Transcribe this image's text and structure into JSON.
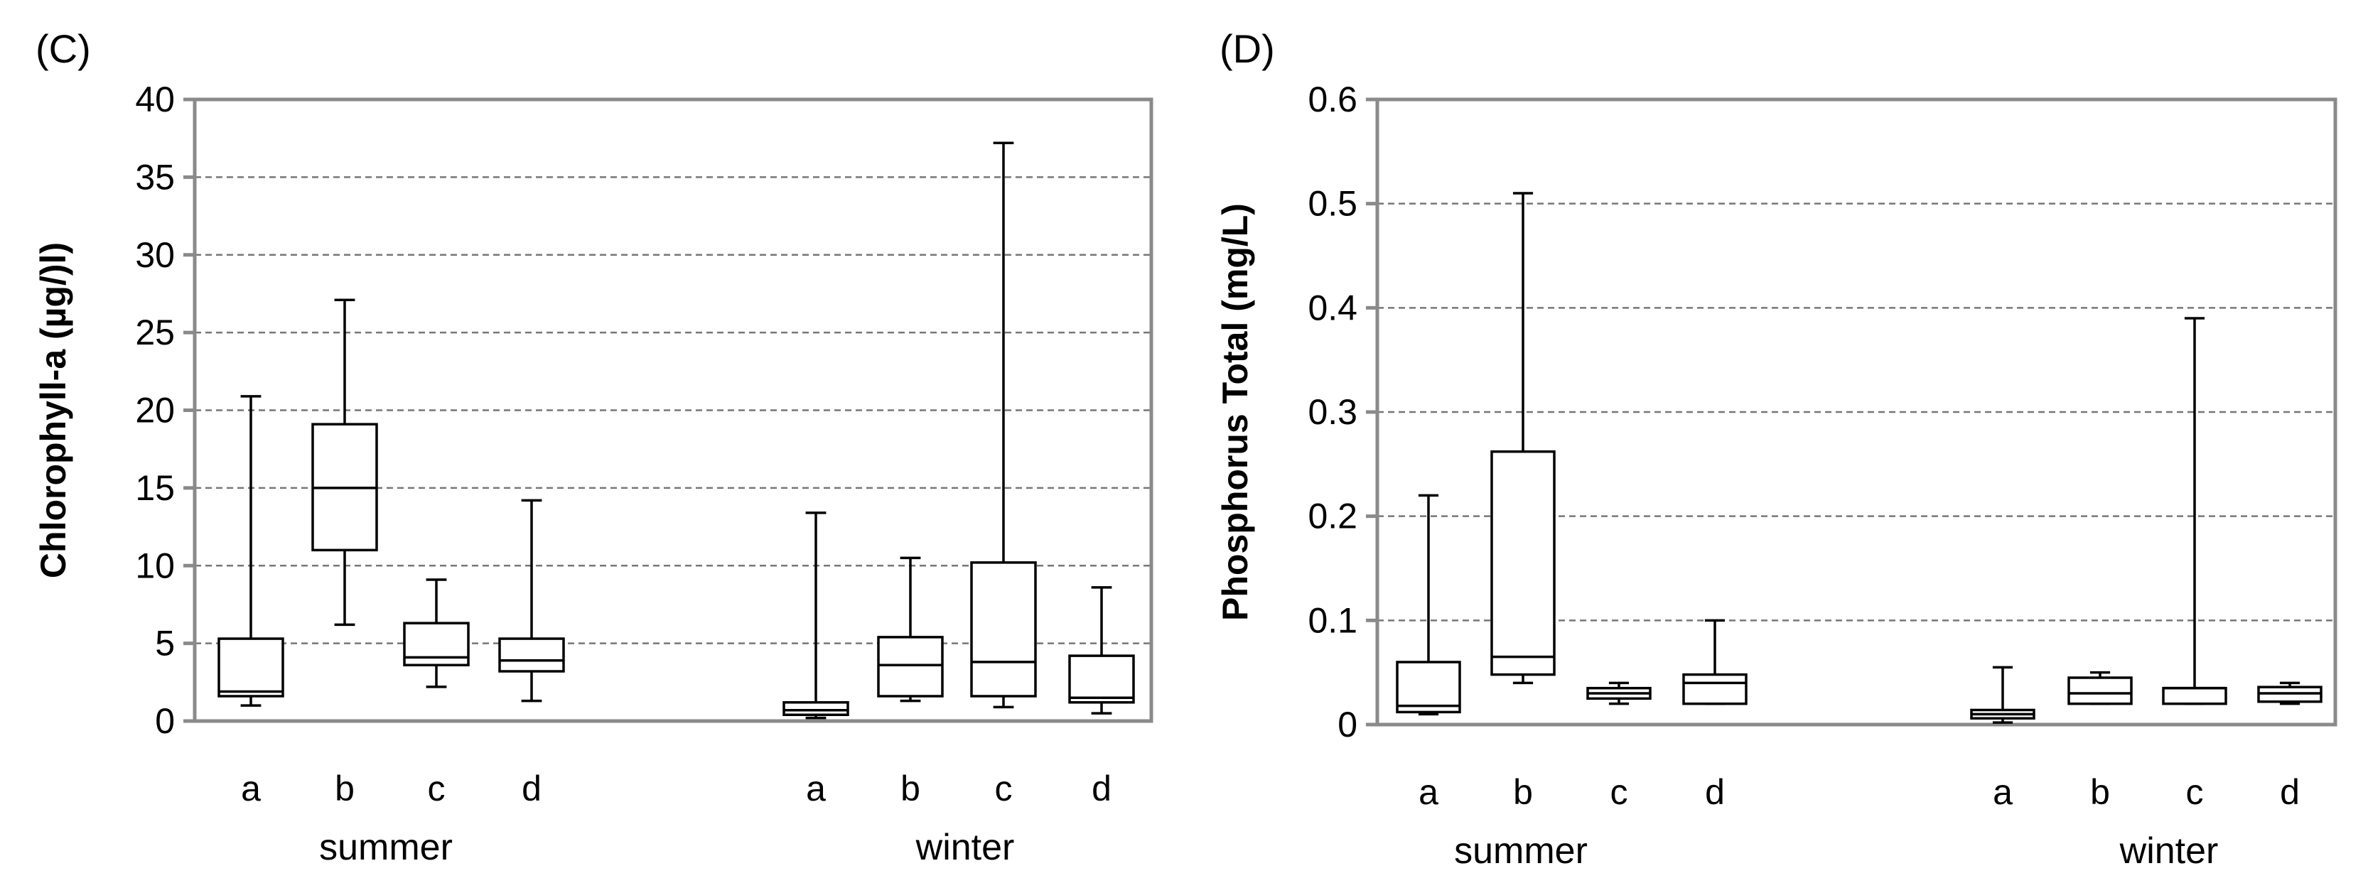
{
  "chart_data": [
    {
      "type": "box",
      "panel_label": "(C)",
      "ylabel": "Chlorophyll-a (µg/)l)",
      "ylim": [
        0,
        40
      ],
      "yticks": [
        "0",
        "5",
        "10",
        "15",
        "20",
        "25",
        "30",
        "35",
        "40"
      ],
      "grid": true,
      "groups": [
        {
          "name": "summer",
          "boxes": [
            {
              "label": "a",
              "min": 1.0,
              "q1": 1.6,
              "median": 1.9,
              "q3": 5.3,
              "max": 20.9
            },
            {
              "label": "b",
              "min": 6.2,
              "q1": 11.0,
              "median": 15.0,
              "q3": 19.1,
              "max": 27.1
            },
            {
              "label": "c",
              "min": 2.2,
              "q1": 3.6,
              "median": 4.1,
              "q3": 6.3,
              "max": 9.1
            },
            {
              "label": "d",
              "min": 1.3,
              "q1": 3.2,
              "median": 3.9,
              "q3": 5.3,
              "max": 14.2
            }
          ]
        },
        {
          "name": "winter",
          "boxes": [
            {
              "label": "a",
              "min": 0.2,
              "q1": 0.4,
              "median": 0.7,
              "q3": 1.2,
              "max": 13.4
            },
            {
              "label": "b",
              "min": 1.3,
              "q1": 1.6,
              "median": 3.6,
              "q3": 5.4,
              "max": 10.5
            },
            {
              "label": "c",
              "min": 0.9,
              "q1": 1.6,
              "median": 3.8,
              "q3": 10.2,
              "max": 37.2
            },
            {
              "label": "d",
              "min": 0.5,
              "q1": 1.2,
              "median": 1.5,
              "q3": 4.2,
              "max": 8.6
            }
          ]
        }
      ]
    },
    {
      "type": "box",
      "panel_label": "(D)",
      "ylabel": "Phosphorus Total (mg/L)",
      "ylim": [
        0,
        0.6
      ],
      "yticks": [
        "0",
        "0.1",
        "0.2",
        "0.3",
        "0.4",
        "0.5",
        "0.6"
      ],
      "grid": true,
      "groups": [
        {
          "name": "summer",
          "boxes": [
            {
              "label": "a",
              "min": 0.01,
              "q1": 0.012,
              "median": 0.018,
              "q3": 0.06,
              "max": 0.22
            },
            {
              "label": "b",
              "min": 0.04,
              "q1": 0.048,
              "median": 0.065,
              "q3": 0.262,
              "max": 0.51
            },
            {
              "label": "c",
              "min": 0.02,
              "q1": 0.025,
              "median": 0.03,
              "q3": 0.035,
              "max": 0.04
            },
            {
              "label": "d",
              "min": 0.02,
              "q1": 0.02,
              "median": 0.04,
              "q3": 0.048,
              "max": 0.1
            }
          ]
        },
        {
          "name": "winter",
          "boxes": [
            {
              "label": "a",
              "min": 0.002,
              "q1": 0.006,
              "median": 0.01,
              "q3": 0.014,
              "max": 0.055
            },
            {
              "label": "b",
              "min": 0.02,
              "q1": 0.02,
              "median": 0.03,
              "q3": 0.045,
              "max": 0.05
            },
            {
              "label": "c",
              "min": 0.02,
              "q1": 0.02,
              "median": 0.035,
              "q3": 0.035,
              "max": 0.39
            },
            {
              "label": "d",
              "min": 0.02,
              "q1": 0.022,
              "median": 0.03,
              "q3": 0.036,
              "max": 0.04
            }
          ]
        }
      ]
    }
  ]
}
